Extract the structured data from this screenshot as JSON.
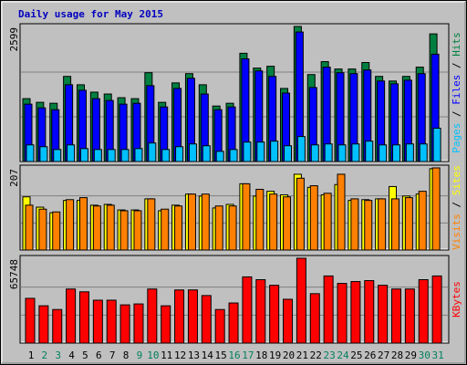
{
  "chart_data": [
    {
      "type": "bar",
      "title": "Daily usage for May 2015",
      "categories": [
        "1",
        "2",
        "3",
        "4",
        "5",
        "6",
        "7",
        "8",
        "9",
        "10",
        "11",
        "12",
        "13",
        "14",
        "15",
        "16",
        "17",
        "18",
        "19",
        "20",
        "21",
        "22",
        "23",
        "24",
        "25",
        "26",
        "27",
        "28",
        "29",
        "30",
        "31"
      ],
      "ylim": [
        0,
        2599
      ],
      "yticks": [
        2599
      ],
      "legend_separator": " / ",
      "series": [
        {
          "name": "Hits",
          "color": "#008040",
          "values": [
            1210,
            1139,
            1121,
            1638,
            1477,
            1335,
            1299,
            1228,
            1210,
            1709,
            1139,
            1513,
            1691,
            1477,
            1068,
            1121,
            2083,
            1798,
            1833,
            1406,
            2599,
            1673,
            1922,
            1780,
            1780,
            1905,
            1638,
            1549,
            1638,
            1816,
            2456
          ]
        },
        {
          "name": "Files",
          "color": "#0000ff",
          "values": [
            1104,
            1032,
            997,
            1477,
            1371,
            1210,
            1175,
            1104,
            1121,
            1460,
            1050,
            1406,
            1602,
            1299,
            997,
            1050,
            1976,
            1744,
            1638,
            1317,
            2492,
            1424,
            1816,
            1709,
            1691,
            1762,
            1549,
            1495,
            1566,
            1691,
            2065
          ]
        },
        {
          "name": "Pages",
          "color": "#00c0ff",
          "values": [
            320,
            285,
            231,
            320,
            249,
            231,
            231,
            231,
            249,
            356,
            231,
            285,
            338,
            303,
            196,
            231,
            374,
            374,
            392,
            303,
            481,
            320,
            338,
            320,
            338,
            392,
            320,
            320,
            338,
            338,
            641
          ]
        }
      ]
    },
    {
      "type": "bar",
      "categories": [
        "1",
        "2",
        "3",
        "4",
        "5",
        "6",
        "7",
        "8",
        "9",
        "10",
        "11",
        "12",
        "13",
        "14",
        "15",
        "16",
        "17",
        "18",
        "19",
        "20",
        "21",
        "22",
        "23",
        "24",
        "25",
        "26",
        "27",
        "28",
        "29",
        "30",
        "31"
      ],
      "ylim": [
        0,
        207
      ],
      "yticks": [
        207
      ],
      "legend_separator": " / ",
      "series": [
        {
          "name": "Sites",
          "color": "#ffff00",
          "values": [
            134,
            108,
            94,
            125,
            125,
            113,
            115,
            101,
            101,
            129,
            99,
            113,
            141,
            136,
            106,
            115,
            167,
            136,
            148,
            139,
            191,
            158,
            139,
            165,
            125,
            127,
            129,
            160,
            136,
            141,
            205
          ]
        },
        {
          "name": "Visits",
          "color": "#ff8000",
          "values": [
            113,
            103,
            96,
            127,
            132,
            111,
            113,
            99,
            99,
            129,
            103,
            111,
            141,
            141,
            111,
            111,
            167,
            153,
            141,
            134,
            181,
            162,
            143,
            191,
            129,
            125,
            129,
            129,
            132,
            148,
            207
          ]
        }
      ]
    },
    {
      "type": "bar",
      "categories": [
        "1",
        "2",
        "3",
        "4",
        "5",
        "6",
        "7",
        "8",
        "9",
        "10",
        "11",
        "12",
        "13",
        "14",
        "15",
        "16",
        "17",
        "18",
        "19",
        "20",
        "21",
        "22",
        "23",
        "24",
        "25",
        "26",
        "27",
        "28",
        "29",
        "30",
        "31"
      ],
      "category_colors": [
        "#000000",
        "#00805c",
        "#00805c",
        "#000000",
        "#000000",
        "#000000",
        "#000000",
        "#000000",
        "#00805c",
        "#00805c",
        "#000000",
        "#000000",
        "#000000",
        "#000000",
        "#000000",
        "#00805c",
        "#00805c",
        "#000000",
        "#000000",
        "#000000",
        "#000000",
        "#000000",
        "#00805c",
        "#00805c",
        "#000000",
        "#000000",
        "#000000",
        "#000000",
        "#000000",
        "#00805c",
        "#00805c"
      ],
      "ylim": [
        0,
        65748
      ],
      "yticks": [
        65748
      ],
      "series": [
        {
          "name": "KBytes",
          "color": "#ff0000",
          "values": [
            34680,
            28900,
            26010,
            41905,
            39738,
            33235,
            33235,
            29623,
            30345,
            41905,
            28900,
            41183,
            41183,
            36848,
            26010,
            31068,
            51298,
            49130,
            44795,
            33958,
            65748,
            38293,
            52020,
            46240,
            47685,
            48408,
            44795,
            41905,
            41905,
            49130,
            52020
          ]
        }
      ]
    }
  ]
}
